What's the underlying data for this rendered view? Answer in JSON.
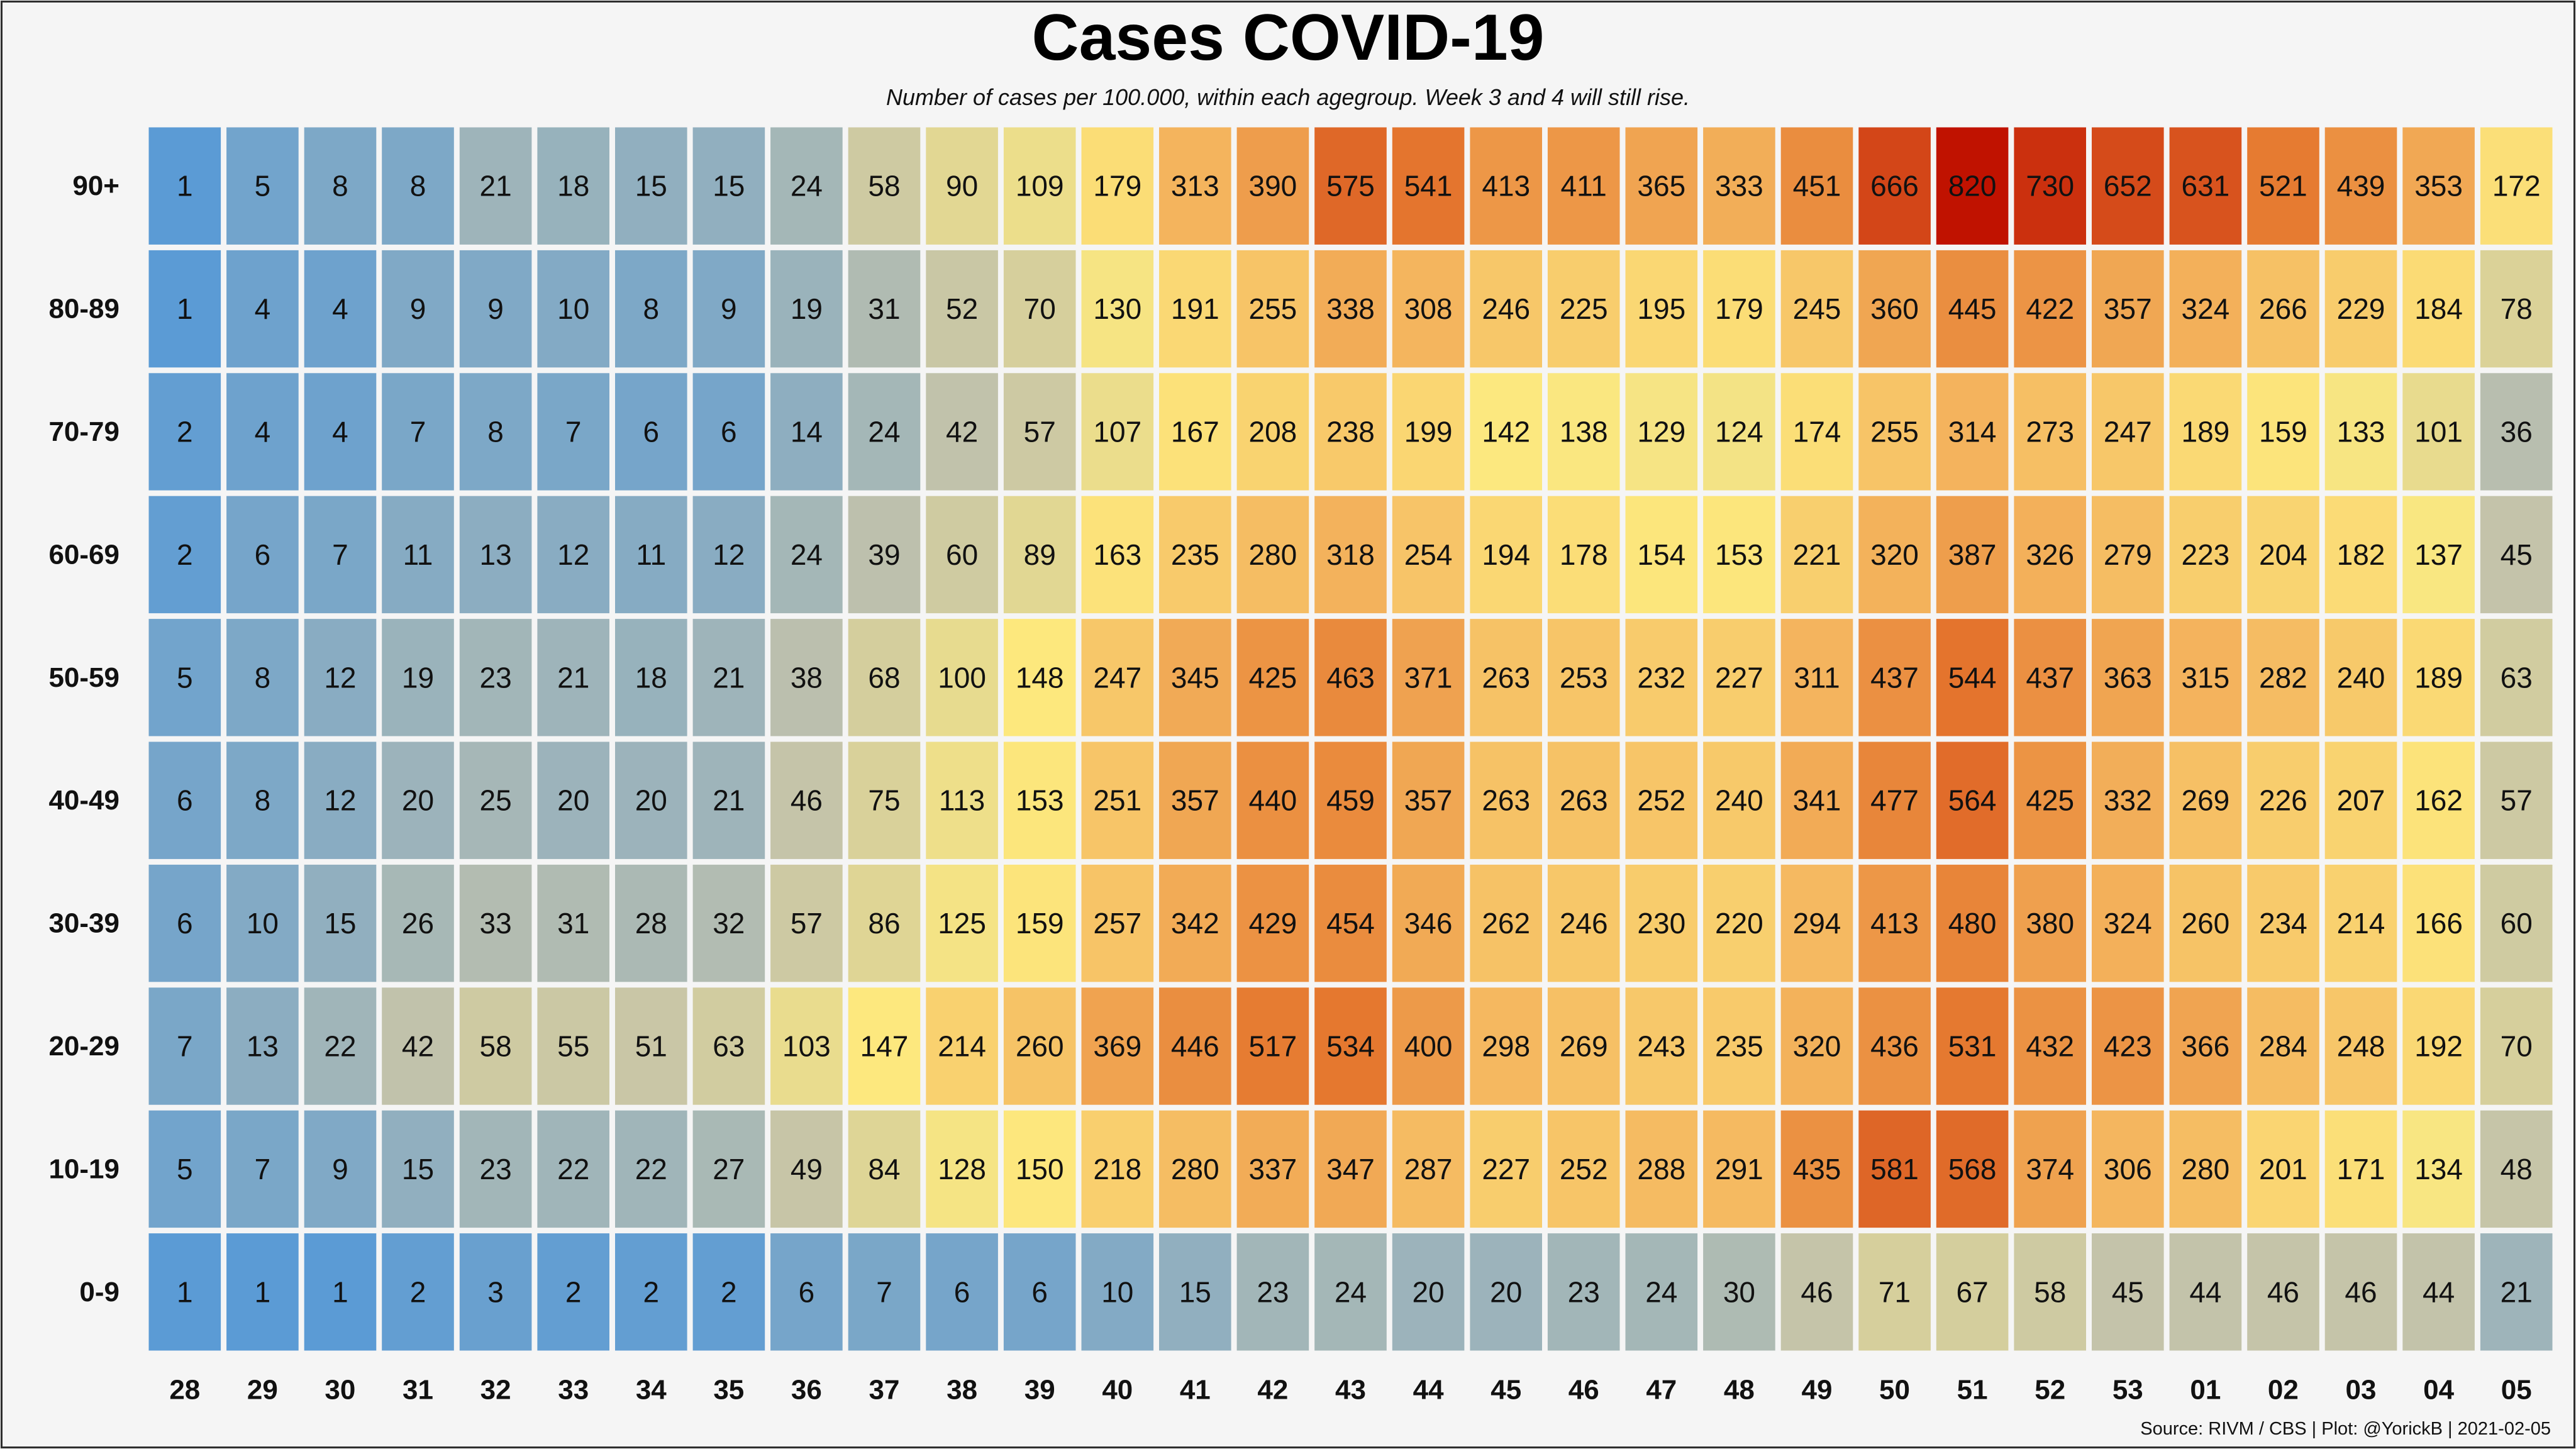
{
  "title": "Cases COVID-19",
  "subtitle": "Number of cases per 100.000, within each agegroup. Week 3 and 4 will still rise.",
  "source": "Source: RIVM / CBS | Plot: @YorickB |  2021-02-05",
  "chart_data": {
    "type": "heatmap",
    "title": "Cases COVID-19",
    "xlabel": "",
    "ylabel": "",
    "x": [
      "28",
      "29",
      "30",
      "31",
      "32",
      "33",
      "34",
      "35",
      "36",
      "37",
      "38",
      "39",
      "40",
      "41",
      "42",
      "43",
      "44",
      "45",
      "46",
      "47",
      "48",
      "49",
      "50",
      "51",
      "52",
      "53",
      "01",
      "02",
      "03",
      "04",
      "05"
    ],
    "y": [
      "90+",
      "80-89",
      "70-79",
      "60-69",
      "50-59",
      "40-49",
      "30-39",
      "20-29",
      "10-19",
      "0-9"
    ],
    "values": [
      [
        1,
        5,
        8,
        8,
        21,
        18,
        15,
        15,
        24,
        58,
        90,
        109,
        179,
        313,
        390,
        575,
        541,
        413,
        411,
        365,
        333,
        451,
        666,
        820,
        730,
        652,
        631,
        521,
        439,
        353,
        172
      ],
      [
        1,
        4,
        4,
        9,
        9,
        10,
        8,
        9,
        19,
        31,
        52,
        70,
        130,
        191,
        255,
        338,
        308,
        246,
        225,
        195,
        179,
        245,
        360,
        445,
        422,
        357,
        324,
        266,
        229,
        184,
        78
      ],
      [
        2,
        4,
        4,
        7,
        8,
        7,
        6,
        6,
        14,
        24,
        42,
        57,
        107,
        167,
        208,
        238,
        199,
        142,
        138,
        129,
        124,
        174,
        255,
        314,
        273,
        247,
        189,
        159,
        133,
        101,
        36
      ],
      [
        2,
        6,
        7,
        11,
        13,
        12,
        11,
        12,
        24,
        39,
        60,
        89,
        163,
        235,
        280,
        318,
        254,
        194,
        178,
        154,
        153,
        221,
        320,
        387,
        326,
        279,
        223,
        204,
        182,
        137,
        45
      ],
      [
        5,
        8,
        12,
        19,
        23,
        21,
        18,
        21,
        38,
        68,
        100,
        148,
        247,
        345,
        425,
        463,
        371,
        263,
        253,
        232,
        227,
        311,
        437,
        544,
        437,
        363,
        315,
        282,
        240,
        189,
        63
      ],
      [
        6,
        8,
        12,
        20,
        25,
        20,
        20,
        21,
        46,
        75,
        113,
        153,
        251,
        357,
        440,
        459,
        357,
        263,
        263,
        252,
        240,
        341,
        477,
        564,
        425,
        332,
        269,
        226,
        207,
        162,
        57
      ],
      [
        6,
        10,
        15,
        26,
        33,
        31,
        28,
        32,
        57,
        86,
        125,
        159,
        257,
        342,
        429,
        454,
        346,
        262,
        246,
        230,
        220,
        294,
        413,
        480,
        380,
        324,
        260,
        234,
        214,
        166,
        60
      ],
      [
        7,
        13,
        22,
        42,
        58,
        55,
        51,
        63,
        103,
        147,
        214,
        260,
        369,
        446,
        517,
        534,
        400,
        298,
        269,
        243,
        235,
        320,
        436,
        531,
        432,
        423,
        366,
        284,
        248,
        192,
        70
      ],
      [
        5,
        7,
        9,
        15,
        23,
        22,
        22,
        27,
        49,
        84,
        128,
        150,
        218,
        280,
        337,
        347,
        287,
        227,
        252,
        288,
        291,
        435,
        581,
        568,
        374,
        306,
        280,
        201,
        171,
        134,
        48
      ],
      [
        1,
        1,
        1,
        2,
        3,
        2,
        2,
        2,
        6,
        7,
        6,
        6,
        10,
        15,
        23,
        24,
        20,
        20,
        23,
        24,
        30,
        46,
        71,
        67,
        58,
        45,
        44,
        46,
        46,
        44,
        21
      ]
    ],
    "colorscale": [
      "#5b9bd5",
      "#c2c2ab",
      "#fde97e",
      "#f4b55e",
      "#e5782f",
      "#c01200"
    ],
    "color_domain": [
      1,
      820
    ]
  }
}
